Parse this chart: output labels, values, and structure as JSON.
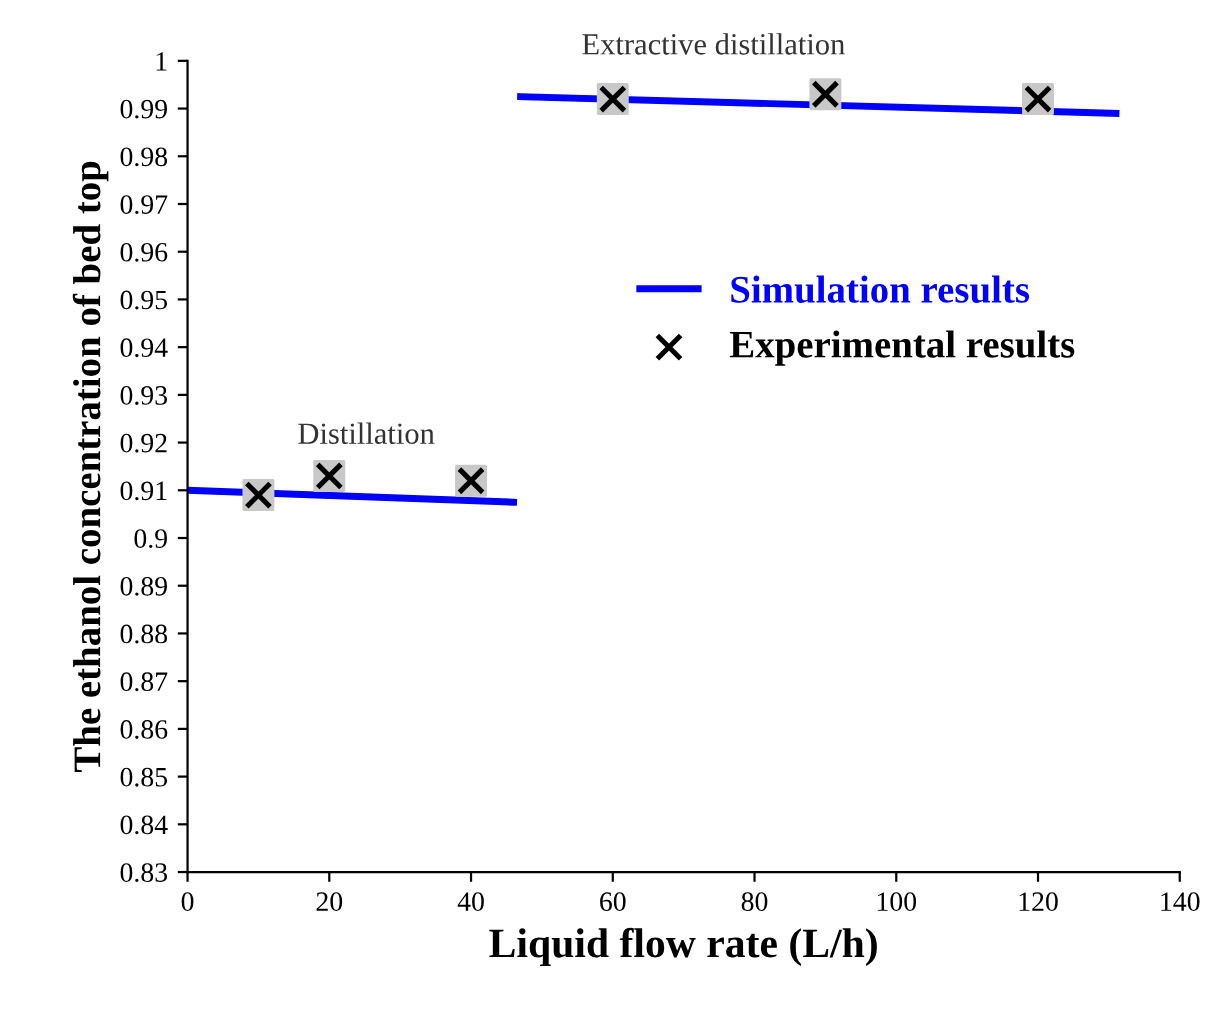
{
  "chart_data": {
    "type": "scatter",
    "xlabel": "Liquid flow rate (L/h)",
    "ylabel": "The ethanol concentration of bed top",
    "xlim": [
      0,
      140
    ],
    "xticks": [
      0,
      20,
      40,
      60,
      80,
      100,
      120,
      140
    ],
    "ylim": [
      0.83,
      1
    ],
    "yticks": [
      0.83,
      0.84,
      0.85,
      0.86,
      0.87,
      0.88,
      0.89,
      0.9,
      0.91,
      0.92,
      0.93,
      0.94,
      0.95,
      0.96,
      0.97,
      0.98,
      0.99,
      1
    ],
    "grid": false,
    "legend": "right",
    "annotations": [
      "Distillation",
      "Extractive distillation"
    ],
    "series": [
      {
        "name": "Simulation results",
        "type": "line",
        "color": "#0000ff",
        "marker": "none",
        "line_style": "solid",
        "x": [
          0,
          46,
          46.5,
          47,
          131
        ],
        "values": [
          0.91,
          0.9075,
          null,
          0.9925,
          0.989
        ]
      },
      {
        "name": "Experimental results",
        "color": "#000000",
        "marker": "cross",
        "x": [
          10,
          20,
          40,
          60,
          90,
          120
        ],
        "values": [
          0.909,
          0.913,
          0.912,
          0.992,
          0.993,
          0.992
        ]
      }
    ]
  }
}
